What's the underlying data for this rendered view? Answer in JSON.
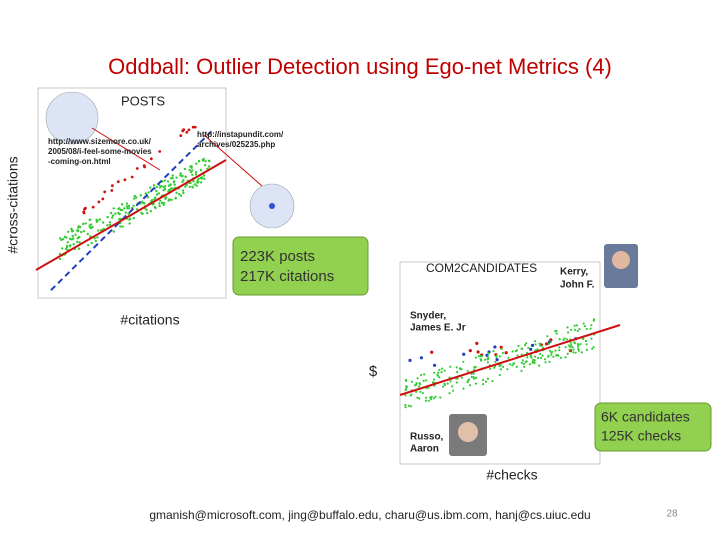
{
  "title": "Oddball: Outlier Detection using Ego-net Metrics (4)",
  "left_plot": {
    "heading": "POSTS",
    "url_1": [
      "http://www.sizemore.co.uk/",
      "2005/08/i-feel-some-movies",
      "-coming-on.html"
    ],
    "url_2": [
      "http://instapundit.com/",
      "archives/025235.php"
    ],
    "y_label": "#cross-citations",
    "x_label": "#citations",
    "callout": [
      "223K posts",
      "217K citations"
    ]
  },
  "right_plot": {
    "heading": "COM2CANDIDATES",
    "person_1": [
      "Kerry,",
      "John F."
    ],
    "person_2": [
      "Snyder,",
      "James E. Jr"
    ],
    "person_3": [
      "Russo,",
      "Aaron"
    ],
    "y_label": "$",
    "x_label": "#checks",
    "callout": [
      "6K candidates",
      "125K checks"
    ]
  },
  "footer": "gmanish@microsoft.com, jing@buffalo.edu, charu@us.ibm.com, hanj@cs.uiuc.edu",
  "page_number": "28"
}
